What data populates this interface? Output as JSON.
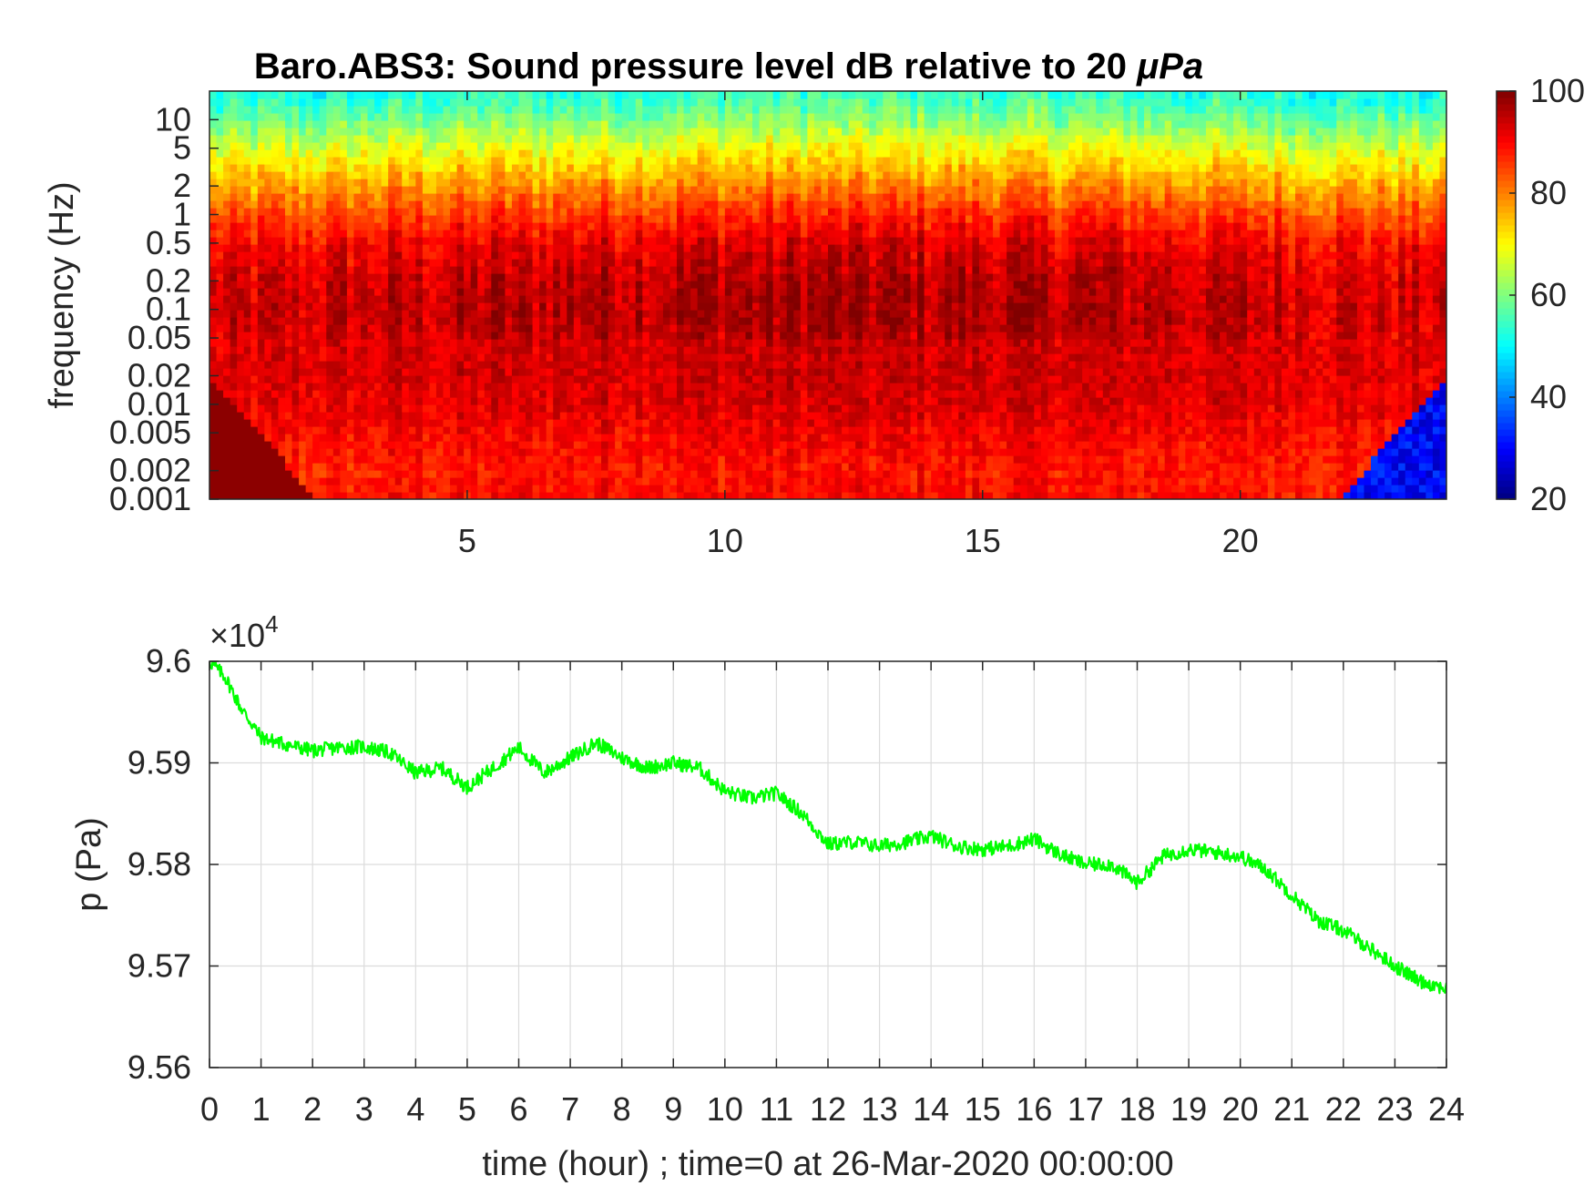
{
  "chart_data": [
    {
      "type": "heatmap",
      "title": "Baro.ABS3: Sound pressure level dB relative to 20",
      "title_unit": "μPa",
      "xlabel": "",
      "ylabel": "frequency (Hz)",
      "xlim": [
        0,
        24
      ],
      "x_ticks": [
        5,
        10,
        15,
        20
      ],
      "y_scale": "log",
      "ylim": [
        0.001,
        20
      ],
      "y_ticks": [
        {
          "value": 0.001,
          "label": "0.001"
        },
        {
          "value": 0.002,
          "label": "0.002"
        },
        {
          "value": 0.005,
          "label": "0.005"
        },
        {
          "value": 0.01,
          "label": "0.01"
        },
        {
          "value": 0.02,
          "label": "0.02"
        },
        {
          "value": 0.05,
          "label": "0.05"
        },
        {
          "value": 0.1,
          "label": "0.1"
        },
        {
          "value": 0.2,
          "label": "0.2"
        },
        {
          "value": 0.5,
          "label": "0.5"
        },
        {
          "value": 1,
          "label": "1"
        },
        {
          "value": 2,
          "label": "2"
        },
        {
          "value": 5,
          "label": "5"
        },
        {
          "value": 10,
          "label": "10"
        }
      ],
      "colormap": "jet",
      "clim": [
        20,
        100
      ],
      "colorbar_ticks": [
        {
          "value": 20,
          "label": "20"
        },
        {
          "value": 40,
          "label": "40"
        },
        {
          "value": 60,
          "label": "60"
        },
        {
          "value": 80,
          "label": "80"
        },
        {
          "value": 100,
          "label": "100"
        }
      ],
      "frequency_profile_db": [
        {
          "f": 0.001,
          "db": 88
        },
        {
          "f": 0.002,
          "db": 87
        },
        {
          "f": 0.005,
          "db": 89
        },
        {
          "f": 0.01,
          "db": 91
        },
        {
          "f": 0.02,
          "db": 92
        },
        {
          "f": 0.05,
          "db": 92
        },
        {
          "f": 0.1,
          "db": 93
        },
        {
          "f": 0.2,
          "db": 92
        },
        {
          "f": 0.5,
          "db": 89
        },
        {
          "f": 1,
          "db": 83
        },
        {
          "f": 2,
          "db": 76
        },
        {
          "f": 5,
          "db": 66
        },
        {
          "f": 10,
          "db": 57
        },
        {
          "f": 20,
          "db": 50
        }
      ]
    },
    {
      "type": "line",
      "title": "",
      "xlabel": "time (hour) ; time=0 at 26-Mar-2020 00:00:00",
      "ylabel": "p (Pa)",
      "y_exponent_label": "×10",
      "y_exponent_power": "4",
      "xlim": [
        0,
        24
      ],
      "ylim": [
        95600,
        96000
      ],
      "x_ticks": [
        "0",
        "1",
        "2",
        "3",
        "4",
        "5",
        "6",
        "7",
        "8",
        "9",
        "10",
        "11",
        "12",
        "13",
        "14",
        "15",
        "16",
        "17",
        "18",
        "19",
        "20",
        "21",
        "22",
        "23",
        "24"
      ],
      "y_ticks": [
        {
          "value": 95600,
          "label": "9.56"
        },
        {
          "value": 95700,
          "label": "9.57"
        },
        {
          "value": 95800,
          "label": "9.58"
        },
        {
          "value": 95900,
          "label": "9.59"
        },
        {
          "value": 96000,
          "label": "9.6"
        }
      ],
      "grid": true,
      "color": "#00ff00",
      "series": [
        {
          "x": [
            0,
            0.3,
            0.6,
            1.0,
            1.5,
            2.0,
            2.5,
            3.0,
            3.5,
            4.0,
            4.5,
            5.0,
            5.5,
            6.0,
            6.5,
            7.0,
            7.5,
            8.0,
            8.5,
            9.0,
            9.5,
            10.0,
            10.5,
            11.0,
            11.5,
            12.0,
            12.5,
            13.0,
            13.5,
            14.0,
            14.5,
            15.0,
            15.5,
            16.0,
            16.5,
            17.0,
            17.5,
            18.0,
            18.5,
            19.0,
            19.5,
            20.0,
            20.5,
            21.0,
            21.5,
            22.0,
            22.5,
            23.0,
            23.5,
            24.0
          ],
          "y": [
            96000,
            95985,
            95955,
            95925,
            95918,
            95912,
            95915,
            95916,
            95910,
            95890,
            95895,
            95876,
            95895,
            95915,
            95890,
            95905,
            95920,
            95905,
            95895,
            95900,
            95895,
            95872,
            95865,
            95870,
            95850,
            95820,
            95822,
            95818,
            95822,
            95828,
            95818,
            95815,
            95818,
            95825,
            95810,
            95800,
            95800,
            95782,
            95808,
            95815,
            95812,
            95808,
            95795,
            95770,
            95745,
            95735,
            95718,
            95700,
            95685,
            95678
          ]
        }
      ]
    }
  ]
}
